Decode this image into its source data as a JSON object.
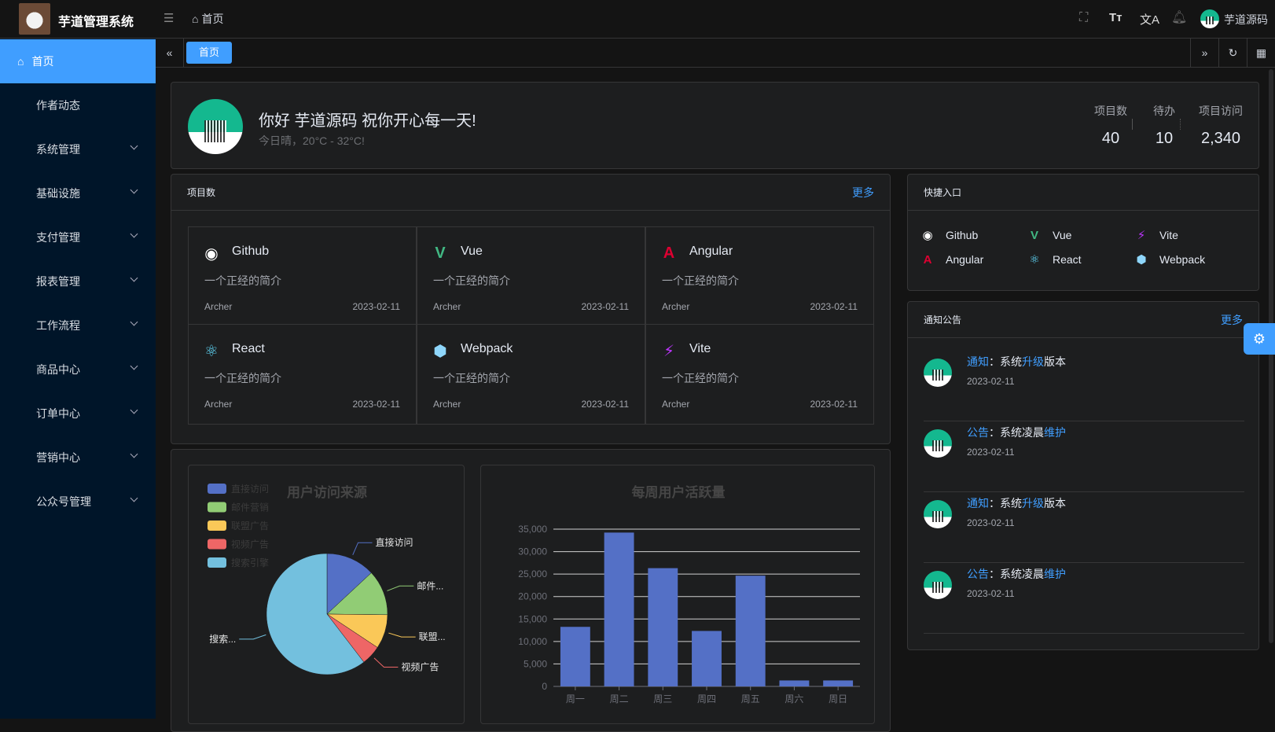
{
  "app": {
    "title": "芋道管理系统",
    "breadcrumb": "首页",
    "user": "芋道源码"
  },
  "sidebar": {
    "items": [
      {
        "label": "首页",
        "active": true
      },
      {
        "label": "作者动态"
      },
      {
        "label": "系统管理",
        "sub": true
      },
      {
        "label": "基础设施",
        "sub": true
      },
      {
        "label": "支付管理",
        "sub": true
      },
      {
        "label": "报表管理",
        "sub": true
      },
      {
        "label": "工作流程",
        "sub": true
      },
      {
        "label": "商品中心",
        "sub": true
      },
      {
        "label": "订单中心",
        "sub": true
      },
      {
        "label": "营销中心",
        "sub": true
      },
      {
        "label": "公众号管理",
        "sub": true
      }
    ]
  },
  "tags": {
    "active": "首页"
  },
  "welcome": {
    "greeting": "你好 芋道源码 祝你开心每一天!",
    "weather": "今日晴，20°C - 32°C!",
    "stats": [
      {
        "label": "项目数",
        "value": "40"
      },
      {
        "label": "待办",
        "value": "10"
      },
      {
        "label": "项目访问",
        "value": "2,340"
      }
    ]
  },
  "projects": {
    "title": "项目数",
    "more": "更多",
    "items": [
      {
        "name": "Github",
        "icon": "github-icon",
        "color": "#ffffff",
        "desc": "一个正经的简介",
        "author": "Archer",
        "date": "2023-02-11"
      },
      {
        "name": "Vue",
        "icon": "vue-icon",
        "color": "#41b883",
        "desc": "一个正经的简介",
        "author": "Archer",
        "date": "2023-02-11"
      },
      {
        "name": "Angular",
        "icon": "angular-icon",
        "color": "#dd0031",
        "desc": "一个正经的简介",
        "author": "Archer",
        "date": "2023-02-11"
      },
      {
        "name": "React",
        "icon": "react-icon",
        "color": "#61dafb",
        "desc": "一个正经的简介",
        "author": "Archer",
        "date": "2023-02-11"
      },
      {
        "name": "Webpack",
        "icon": "webpack-icon",
        "color": "#8ed6fb",
        "desc": "一个正经的简介",
        "author": "Archer",
        "date": "2023-02-11"
      },
      {
        "name": "Vite",
        "icon": "vite-icon",
        "color": "#bd34fe",
        "desc": "一个正经的简介",
        "author": "Archer",
        "date": "2023-02-11"
      }
    ]
  },
  "quick": {
    "title": "快捷入口",
    "items": [
      {
        "name": "Github",
        "icon": "github-icon",
        "color": "#ffffff"
      },
      {
        "name": "Vue",
        "icon": "vue-icon",
        "color": "#41b883"
      },
      {
        "name": "Vite",
        "icon": "vite-icon",
        "color": "#bd34fe"
      },
      {
        "name": "Angular",
        "icon": "angular-icon",
        "color": "#dd0031"
      },
      {
        "name": "React",
        "icon": "react-icon",
        "color": "#61dafb"
      },
      {
        "name": "Webpack",
        "icon": "webpack-icon",
        "color": "#8ed6fb"
      }
    ]
  },
  "notices": {
    "title": "通知公告",
    "more": "更多",
    "items": [
      {
        "type": "通知",
        "sep": "：",
        "pre": "系统",
        "hl": "升级",
        "post": "版本",
        "date": "2023-02-11"
      },
      {
        "type": "公告",
        "sep": "：",
        "pre": "系统凌晨",
        "hl": "维护",
        "post": "",
        "date": "2023-02-11"
      },
      {
        "type": "通知",
        "sep": "：",
        "pre": "系统",
        "hl": "升级",
        "post": "版本",
        "date": "2023-02-11"
      },
      {
        "type": "公告",
        "sep": "：",
        "pre": "系统凌晨",
        "hl": "维护",
        "post": "",
        "date": "2023-02-11"
      }
    ]
  },
  "chart_data": [
    {
      "type": "pie",
      "title": "用户访问来源",
      "legend": "top-left",
      "categories": [
        "直接访问",
        "邮件营销",
        "联盟广告",
        "视频广告",
        "搜索引擎"
      ],
      "labels": [
        "直接访问",
        "邮件...",
        "联盟...",
        "视频广告",
        "搜索..."
      ],
      "values": [
        335,
        310,
        234,
        135,
        1548
      ],
      "colors": [
        "#5470c6",
        "#91cc75",
        "#fac858",
        "#ee6666",
        "#73c0de"
      ]
    },
    {
      "type": "bar",
      "title": "每周用户活跃量",
      "categories": [
        "周一",
        "周二",
        "周三",
        "周四",
        "周五",
        "周六",
        "周日"
      ],
      "values": [
        13253,
        34235,
        26321,
        12340,
        24643,
        1322,
        1324
      ],
      "ylim": [
        0,
        35000
      ],
      "yticks": [
        "0",
        "5,000",
        "10,000",
        "15,000",
        "20,000",
        "25,000",
        "30,000",
        "35,000"
      ],
      "grid": true,
      "color": "#5470c6"
    }
  ]
}
